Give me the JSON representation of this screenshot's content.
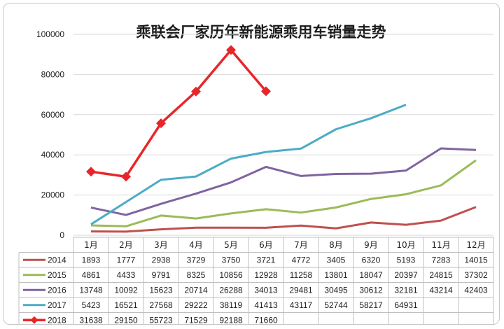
{
  "chart_data": {
    "type": "line",
    "title": "乘联会厂家历年新能源乘用车销量走势",
    "categories": [
      "1月",
      "2月",
      "3月",
      "4月",
      "5月",
      "6月",
      "7月",
      "8月",
      "9月",
      "10月",
      "11月",
      "12月"
    ],
    "ylim": [
      0,
      100000
    ],
    "yticks": [
      "0",
      "20000",
      "40000",
      "60000",
      "80000",
      "100000"
    ],
    "grid": true,
    "legend": "data table below plot",
    "series": [
      {
        "name": "2014",
        "color": "#c0504d",
        "marker": "none",
        "values": [
          1893,
          1777,
          2938,
          3729,
          3750,
          3721,
          4772,
          3405,
          6320,
          5193,
          7283,
          14015
        ]
      },
      {
        "name": "2015",
        "color": "#9bbb59",
        "marker": "none",
        "values": [
          4861,
          4433,
          9791,
          8325,
          10856,
          12928,
          11258,
          13801,
          18047,
          20397,
          24815,
          37302
        ]
      },
      {
        "name": "2016",
        "color": "#8064a2",
        "marker": "none",
        "values": [
          13748,
          10092,
          15623,
          20714,
          26288,
          34013,
          29481,
          30495,
          30612,
          32181,
          43214,
          42403
        ]
      },
      {
        "name": "2017",
        "color": "#4bacc6",
        "marker": "none",
        "values": [
          5423,
          16521,
          27568,
          29222,
          38119,
          41413,
          43117,
          52744,
          58217,
          64931,
          null,
          null
        ]
      },
      {
        "name": "2018",
        "color": "#e8262a",
        "marker": "diamond",
        "values": [
          31638,
          29150,
          55723,
          71529,
          92188,
          71660,
          null,
          null,
          null,
          null,
          null,
          null
        ]
      }
    ]
  }
}
